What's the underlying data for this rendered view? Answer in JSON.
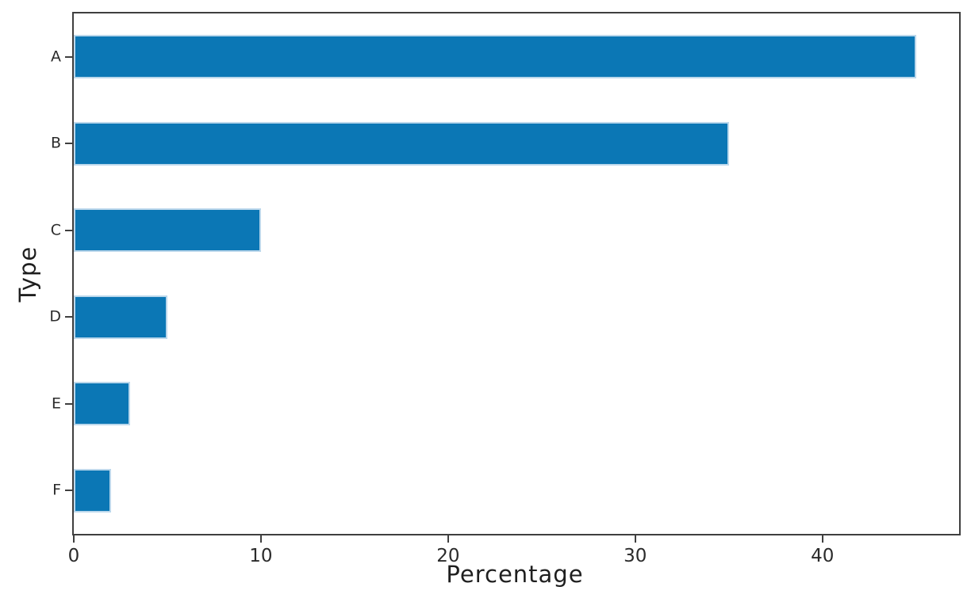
{
  "chart_data": {
    "type": "bar",
    "orientation": "horizontal",
    "title": "",
    "xlabel": "Percentage",
    "ylabel": "Type",
    "categories": [
      "A",
      "B",
      "C",
      "D",
      "E",
      "F"
    ],
    "values": [
      45,
      35,
      10,
      5,
      3,
      2
    ],
    "xlim": [
      0,
      47.3
    ],
    "xticks": [
      0,
      10,
      20,
      30,
      40
    ],
    "grid": false,
    "legend": "none",
    "style": "xkcd-sketch",
    "colors": {
      "bar_fill": "#0b77b5",
      "bar_halo_edge": "#bcd8ec",
      "axis": "#3f3f3f",
      "text": "#1f1f1f",
      "background": "#ffffff"
    }
  }
}
